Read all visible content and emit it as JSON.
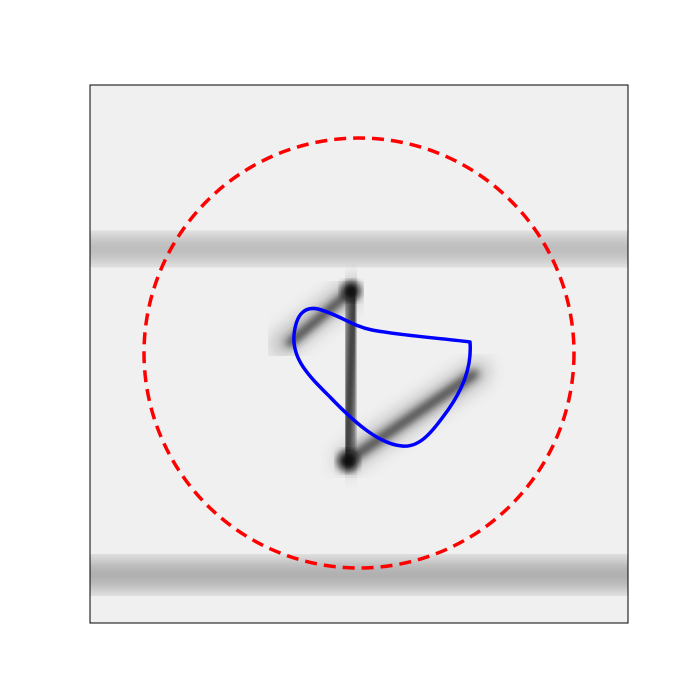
{
  "figure": {
    "image_description_hidden": false,
    "colors": {
      "page_background": "#ffffff",
      "image_background": "#f0f0f0",
      "ink_dark": "#1a1a1a",
      "ruled_line": "#9a9a9a",
      "circle_stroke": "#ff0000",
      "contour_stroke": "#0000ff",
      "frame_stroke": "#000000"
    },
    "circle_style": "dashed",
    "contour_style": "solid",
    "ticks_visible": false,
    "axis_labels_visible": false
  }
}
